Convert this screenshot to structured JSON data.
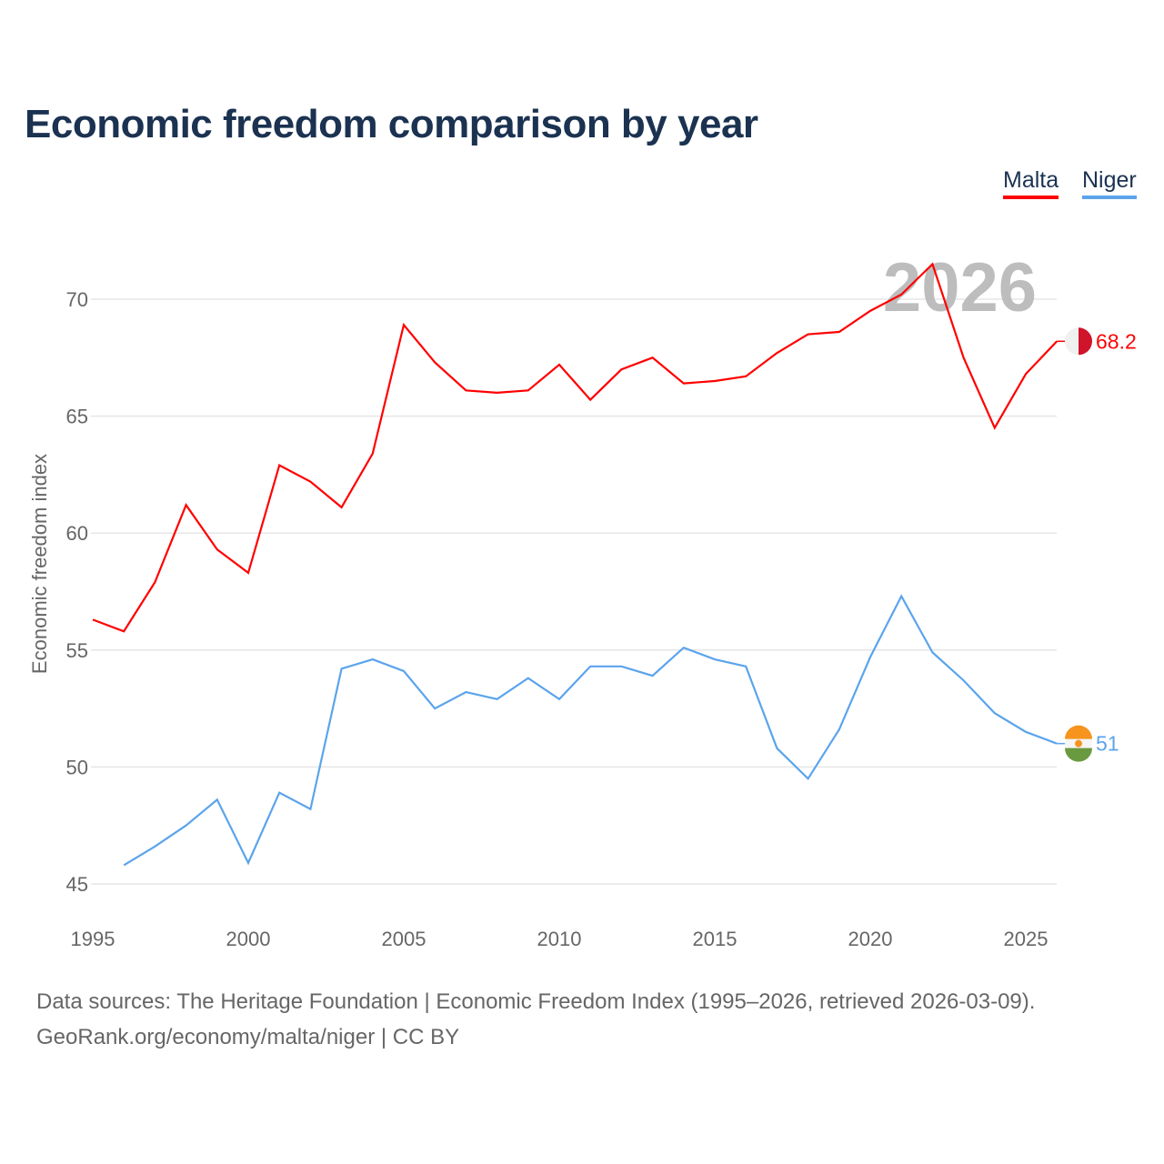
{
  "chart_data": {
    "type": "line",
    "title": "Economic freedom comparison by year",
    "ylabel": "Economic freedom index",
    "xlabel": "",
    "ylim": [
      45,
      72
    ],
    "xlim": [
      1995,
      2026
    ],
    "yticks": [
      45,
      50,
      55,
      60,
      65,
      70
    ],
    "xticks": [
      1995,
      2000,
      2005,
      2010,
      2015,
      2020,
      2025
    ],
    "grid": true,
    "legend_position": "top-right",
    "year_label": "2026",
    "series": [
      {
        "name": "Malta",
        "color": "#ff0000",
        "end_label": "68.2",
        "x": [
          1995,
          1996,
          1997,
          1998,
          1999,
          2000,
          2001,
          2002,
          2003,
          2004,
          2005,
          2006,
          2007,
          2008,
          2009,
          2010,
          2011,
          2012,
          2013,
          2014,
          2015,
          2016,
          2017,
          2018,
          2019,
          2020,
          2021,
          2022,
          2023,
          2024,
          2025,
          2026
        ],
        "values": [
          56.3,
          55.8,
          57.9,
          61.2,
          59.3,
          58.3,
          62.9,
          62.2,
          61.1,
          63.4,
          68.9,
          67.3,
          66.1,
          66.0,
          66.1,
          67.2,
          65.7,
          67.0,
          67.5,
          66.4,
          66.5,
          66.7,
          67.7,
          68.5,
          68.6,
          69.5,
          70.2,
          71.5,
          67.5,
          64.5,
          66.8,
          68.2
        ]
      },
      {
        "name": "Niger",
        "color": "#5ba4ec",
        "end_label": "51",
        "x": [
          1996,
          1997,
          1998,
          1999,
          2000,
          2001,
          2002,
          2003,
          2004,
          2005,
          2006,
          2007,
          2008,
          2009,
          2010,
          2011,
          2012,
          2013,
          2014,
          2015,
          2016,
          2017,
          2018,
          2019,
          2020,
          2021,
          2022,
          2023,
          2024,
          2025,
          2026
        ],
        "values": [
          45.8,
          46.6,
          47.5,
          48.6,
          45.9,
          48.9,
          48.2,
          54.2,
          54.6,
          54.1,
          52.5,
          53.2,
          52.9,
          53.8,
          52.9,
          54.3,
          54.3,
          53.9,
          55.1,
          54.6,
          54.3,
          50.8,
          49.5,
          51.6,
          54.7,
          57.3,
          54.9,
          53.7,
          52.3,
          51.5,
          51.0
        ]
      }
    ]
  },
  "footer": {
    "line1": "Data sources: The Heritage Foundation | Economic Freedom Index (1995–2026, retrieved 2026-03-09).",
    "line2": "GeoRank.org/economy/malta/niger | CC BY"
  }
}
